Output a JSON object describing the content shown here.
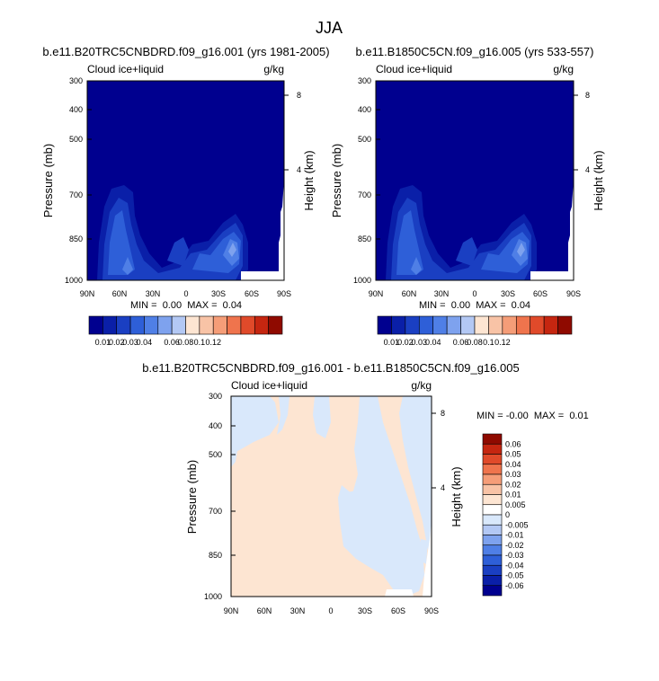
{
  "page_title": "JJA",
  "colors": {
    "abs_levels": [
      "#00008f",
      "#0a1fa8",
      "#1a3fc2",
      "#2e5fd8",
      "#4f7fe6",
      "#7ea2ee",
      "#b3c8f4",
      "#fde5d2",
      "#f8c3a6",
      "#f59d78",
      "#ef744d",
      "#e04a2a",
      "#c52610",
      "#8f0a00"
    ],
    "diff_levels": [
      "#8f0a00",
      "#c52610",
      "#e04a2a",
      "#ef744d",
      "#f59d78",
      "#f8c3a6",
      "#fde5d2",
      "#ffffff",
      "#d9e8fb",
      "#b3c8f4",
      "#7ea2ee",
      "#4f7fe6",
      "#2e5fd8",
      "#1a3fc2",
      "#0a1fa8",
      "#00008f"
    ]
  },
  "chart_data": [
    {
      "type": "heatmap",
      "title": "b.e11.B20TRC5CNBDRD.f09_g16.001 (yrs 1981-2005)",
      "variable_label": "Cloud ice+liquid",
      "units_label": "g/kg",
      "ylabel": "Pressure (mb)",
      "ylabel_right": "Height (km)",
      "x_ticks": [
        "90N",
        "60N",
        "30N",
        "0",
        "30S",
        "60S",
        "90S"
      ],
      "y_ticks": [
        "300",
        "400",
        "500",
        "700",
        "850",
        "1000"
      ],
      "y_ticks_right": [
        "8",
        "4"
      ],
      "stats": "MIN =  0.00  MAX =  0.04",
      "colorbar_labels": [
        "0.01",
        "0.02",
        "0.03",
        "0.04",
        "0.06",
        "0.08",
        "0.1",
        "0.12"
      ]
    },
    {
      "type": "heatmap",
      "title": "b.e11.B1850C5CN.f09_g16.005 (yrs 533-557)",
      "variable_label": "Cloud ice+liquid",
      "units_label": "g/kg",
      "ylabel": "Pressure (mb)",
      "ylabel_right": "Height (km)",
      "x_ticks": [
        "90N",
        "60N",
        "30N",
        "0",
        "30S",
        "60S",
        "90S"
      ],
      "y_ticks": [
        "300",
        "400",
        "500",
        "700",
        "850",
        "1000"
      ],
      "y_ticks_right": [
        "8",
        "4"
      ],
      "stats": "MIN =  0.00  MAX =  0.04",
      "colorbar_labels": [
        "0.01",
        "0.02",
        "0.03",
        "0.04",
        "0.06",
        "0.08",
        "0.1",
        "0.12"
      ]
    },
    {
      "type": "heatmap",
      "title": "b.e11.B20TRC5CNBDRD.f09_g16.001 - b.e11.B1850C5CN.f09_g16.005",
      "variable_label": "Cloud ice+liquid",
      "units_label": "g/kg",
      "ylabel": "Pressure (mb)",
      "ylabel_right": "Height (km)",
      "x_ticks": [
        "90N",
        "60N",
        "30N",
        "0",
        "30S",
        "60S",
        "90S"
      ],
      "y_ticks": [
        "300",
        "400",
        "500",
        "700",
        "850",
        "1000"
      ],
      "y_ticks_right": [
        "8",
        "4"
      ],
      "stats": "MIN = -0.00  MAX =  0.01",
      "colorbar_labels": [
        "0.06",
        "0.05",
        "0.04",
        "0.03",
        "0.02",
        "0.01",
        "0.005",
        "0",
        "-0.005",
        "-0.01",
        "-0.02",
        "-0.03",
        "-0.04",
        "-0.05",
        "-0.06"
      ]
    }
  ]
}
